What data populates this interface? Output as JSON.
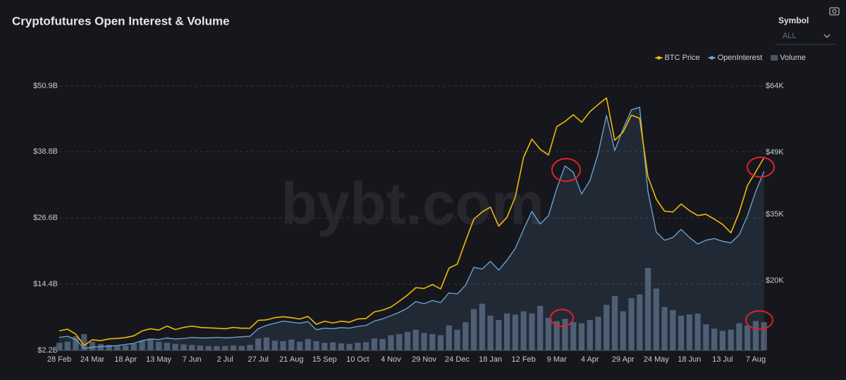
{
  "chart_data": {
    "type": "combo",
    "title": "Cryptofutures Open Interest & Volume",
    "categories": [
      "28 Feb",
      null,
      null,
      null,
      "24 Mar",
      null,
      null,
      null,
      "18 Apr",
      null,
      null,
      null,
      "13 May",
      null,
      null,
      null,
      "7 Jun",
      null,
      null,
      null,
      "2 Jul",
      null,
      null,
      null,
      "27 Jul",
      null,
      null,
      null,
      "21 Aug",
      null,
      null,
      null,
      "15 Sep",
      null,
      null,
      null,
      "10 Oct",
      null,
      null,
      null,
      "4 Nov",
      null,
      null,
      null,
      "29 Nov",
      null,
      null,
      null,
      "24 Dec",
      null,
      null,
      null,
      "18 Jan",
      null,
      null,
      null,
      "12 Feb",
      null,
      null,
      null,
      "9 Mar",
      null,
      null,
      null,
      "4 Apr",
      null,
      null,
      null,
      "29 Apr",
      null,
      null,
      null,
      "24 May",
      null,
      null,
      null,
      "18 Jun",
      null,
      null,
      null,
      "13 Jul",
      null,
      null,
      null,
      "7 Aug",
      null
    ],
    "series": [
      {
        "name": "BTC Price",
        "type": "line",
        "axis": "y2",
        "color": "#f0b90b",
        "values": [
          8.6,
          9.0,
          7.9,
          5.3,
          6.6,
          6.4,
          6.8,
          6.9,
          7.1,
          7.5,
          8.6,
          9.1,
          8.8,
          9.7,
          8.9,
          9.4,
          9.7,
          9.4,
          9.3,
          9.2,
          9.1,
          9.4,
          9.2,
          9.2,
          11.0,
          11.1,
          11.6,
          11.8,
          11.6,
          11.3,
          11.9,
          10.1,
          10.8,
          10.4,
          10.8,
          10.6,
          11.3,
          11.4,
          12.9,
          13.3,
          14.0,
          15.3,
          16.7,
          18.4,
          18.2,
          19.1,
          18.1,
          22.8,
          23.7,
          28.9,
          33.9,
          35.5,
          36.6,
          32.3,
          34.3,
          38.9,
          47.9,
          52.0,
          49.7,
          48.4,
          54.8,
          56.0,
          57.5,
          55.8,
          58.2,
          59.8,
          61.3,
          51.7,
          53.6,
          57.4,
          56.7,
          43.5,
          38.4,
          35.7,
          35.5,
          37.3,
          35.8,
          34.7,
          35.0,
          33.9,
          32.7,
          30.8,
          35.4,
          41.5,
          44.6,
          47.8
        ]
      },
      {
        "name": "OpenInterest",
        "type": "area",
        "color": "#6fa8dc",
        "values": [
          4.6,
          4.8,
          4.2,
          2.6,
          2.8,
          2.9,
          3.0,
          3.1,
          3.3,
          3.5,
          4.0,
          4.3,
          4.2,
          4.5,
          4.3,
          4.4,
          4.6,
          4.5,
          4.5,
          4.6,
          4.5,
          4.6,
          4.7,
          4.8,
          6.2,
          6.8,
          7.2,
          7.6,
          7.4,
          7.2,
          7.5,
          6.0,
          6.3,
          6.2,
          6.4,
          6.3,
          6.6,
          6.8,
          7.6,
          8.0,
          8.6,
          9.2,
          10.0,
          11.2,
          10.8,
          11.4,
          11.0,
          12.8,
          12.6,
          14.2,
          17.5,
          17.2,
          18.6,
          17.0,
          18.8,
          21.0,
          24.5,
          27.8,
          25.5,
          27.0,
          32.0,
          36.2,
          35.0,
          31.0,
          33.5,
          38.5,
          45.5,
          39.0,
          43.0,
          46.5,
          47.0,
          31.5,
          24.0,
          22.5,
          23.0,
          24.5,
          23.0,
          21.8,
          22.5,
          22.8,
          22.3,
          22.0,
          23.5,
          27.0,
          31.5,
          35.2
        ]
      },
      {
        "name": "Volume",
        "type": "bar",
        "color": "#4b5468",
        "values": [
          3.6,
          3.8,
          4.8,
          5.2,
          3.8,
          3.4,
          3.2,
          3.0,
          3.1,
          3.4,
          4.0,
          4.2,
          3.8,
          3.6,
          3.4,
          3.3,
          3.2,
          3.1,
          3.0,
          3.0,
          3.0,
          3.1,
          3.0,
          3.2,
          4.4,
          4.6,
          4.0,
          3.9,
          4.2,
          3.8,
          4.3,
          3.9,
          3.6,
          3.7,
          3.5,
          3.4,
          3.6,
          3.7,
          4.4,
          4.3,
          5.0,
          5.2,
          5.6,
          6.0,
          5.4,
          5.2,
          5.0,
          6.8,
          6.0,
          7.4,
          9.8,
          10.8,
          8.6,
          7.8,
          9.0,
          8.8,
          9.4,
          9.0,
          10.4,
          8.2,
          7.6,
          8.0,
          7.4,
          7.2,
          7.8,
          8.4,
          10.6,
          12.2,
          9.4,
          11.8,
          12.5,
          17.4,
          13.6,
          10.2,
          9.6,
          8.6,
          8.8,
          9.0,
          7.0,
          6.2,
          5.8,
          6.0,
          7.2,
          6.8,
          7.6,
          7.4
        ]
      }
    ],
    "ylim": [
      2.2,
      50.9
    ],
    "yticks": [
      {
        "value": 2.2,
        "label": "$2.2B"
      },
      {
        "value": 14.4,
        "label": "$14.4B"
      },
      {
        "value": 26.6,
        "label": "$26.6B"
      },
      {
        "value": 38.8,
        "label": "$38.8B"
      },
      {
        "value": 50.9,
        "label": "$50.9B"
      }
    ],
    "y2lim": [
      4.2,
      64
    ],
    "y2ticks": [
      {
        "value": 20,
        "label": "$20K"
      },
      {
        "value": 35,
        "label": "$35K"
      },
      {
        "value": 49,
        "label": "$49K"
      },
      {
        "value": 64,
        "label": "$64K"
      }
    ],
    "grid": true,
    "legend": "top-right"
  },
  "controls": {
    "symbol_label": "Symbol",
    "symbol_value": "ALL"
  },
  "watermark": "bybt.com"
}
